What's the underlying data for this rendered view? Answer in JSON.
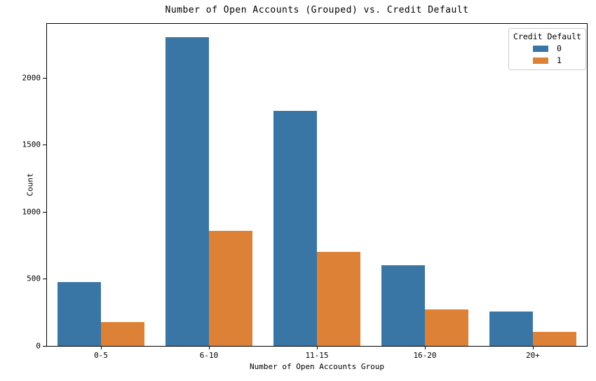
{
  "chart_data": {
    "type": "bar",
    "grouped": true,
    "title": "Number of Open Accounts (Grouped) vs. Credit Default",
    "xlabel": "Number of Open Accounts Group",
    "ylabel": "Count",
    "categories": [
      "0-5",
      "6-10",
      "11-15",
      "16-20",
      "20+"
    ],
    "series": [
      {
        "name": "0",
        "color": "#3A76A5",
        "values": [
          475,
          2300,
          1750,
          600,
          255
        ]
      },
      {
        "name": "1",
        "color": "#DD8136",
        "values": [
          180,
          860,
          700,
          270,
          105
        ]
      }
    ],
    "ylim": [
      0,
      2400
    ],
    "yticks": [
      0,
      500,
      1000,
      1500,
      2000
    ],
    "grid": false,
    "legend": {
      "title": "Credit Default",
      "position": "upper right",
      "entries": [
        "0",
        "1"
      ]
    }
  }
}
